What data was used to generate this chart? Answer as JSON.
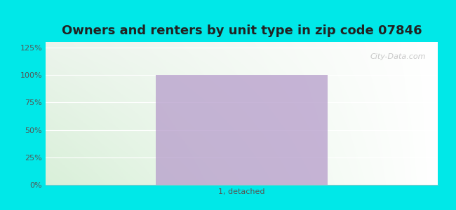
{
  "title": "Owners and renters by unit type in zip code 07846",
  "categories": [
    "1, detached"
  ],
  "values": [
    100
  ],
  "bar_color": "#b8a0cc",
  "bg_outer": "#00e8e8",
  "ylabel_ticks": [
    0,
    25,
    50,
    75,
    100,
    125
  ],
  "ylim": [
    0,
    130
  ],
  "title_fontsize": 13,
  "tick_fontsize": 8,
  "xlabel_fontsize": 8,
  "watermark": "City-Data.com",
  "bar_alpha": 0.78
}
